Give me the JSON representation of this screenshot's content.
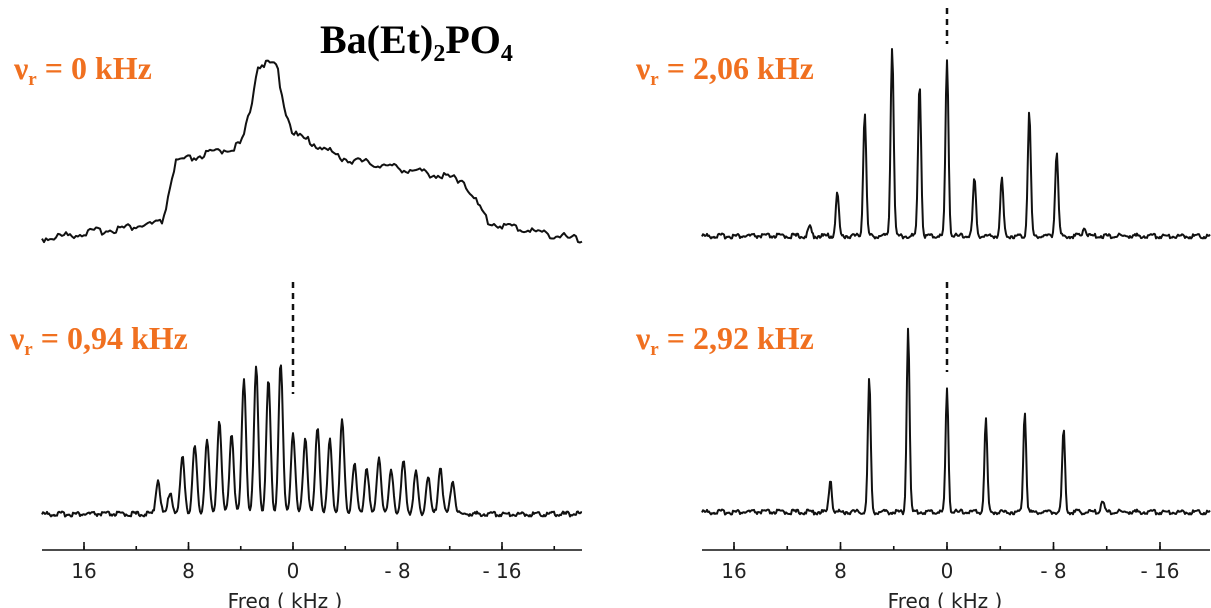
{
  "title": {
    "main": "Ba(Et)",
    "sub1": "2",
    "mid": "PO",
    "sub2": "4"
  },
  "colors": {
    "label": "#f07020",
    "trace": "#111111"
  },
  "chart_data": [
    {
      "type": "line",
      "panel": "top-left",
      "label": {
        "sym": "ν",
        "sub": "r",
        "text": " = 0 kHz"
      },
      "kind": "static",
      "x_range_khz": [
        20,
        -22
      ],
      "description_points": {
        "x": [
          20,
          10,
          9,
          4,
          2,
          0,
          -4,
          -8,
          -13,
          -15,
          -22
        ],
        "y": [
          0.0,
          0.1,
          0.45,
          0.55,
          1.0,
          0.62,
          0.47,
          0.42,
          0.35,
          0.1,
          0.0
        ]
      }
    },
    {
      "type": "line",
      "panel": "top-right",
      "label": {
        "sym": "ν",
        "sub": "r",
        "text": " = 2,06 kHz"
      },
      "kind": "spinning",
      "spin_rate_khz": 2.06,
      "x_range_khz": [
        20,
        -20
      ],
      "sidebands": {
        "x": [
          10.3,
          8.24,
          6.18,
          4.12,
          2.06,
          0,
          -2.06,
          -4.12,
          -6.18,
          -8.24,
          -10.3
        ],
        "y": [
          0.05,
          0.23,
          0.65,
          1.0,
          0.81,
          0.92,
          0.3,
          0.3,
          0.65,
          0.45,
          0.05
        ]
      },
      "xticks": [
        "16",
        "8",
        "0",
        "- 8",
        "- 16"
      ],
      "xlabel": "Freq ( kHz )",
      "dashed_marker_x": 0
    },
    {
      "type": "line",
      "panel": "bottom-left",
      "label": {
        "sym": "ν",
        "sub": "r",
        "text": " = 0,94 kHz"
      },
      "kind": "spinning",
      "spin_rate_khz": 0.94,
      "x_range_khz": [
        20,
        -22
      ],
      "xticks": [
        "16",
        "8",
        "0",
        "- 8",
        "- 16"
      ],
      "xlabel": "Freq ( kHz )",
      "dashed_marker_x": 0
    },
    {
      "type": "line",
      "panel": "bottom-right",
      "label": {
        "sym": "ν",
        "sub": "r",
        "text": " = 2,92 kHz"
      },
      "kind": "spinning",
      "spin_rate_khz": 2.92,
      "x_range_khz": [
        20,
        -20
      ],
      "sidebands": {
        "x": [
          8.76,
          5.84,
          2.92,
          0,
          -2.92,
          -5.84,
          -8.76,
          -11.68
        ],
        "y": [
          0.18,
          0.72,
          1.0,
          0.66,
          0.5,
          0.55,
          0.45,
          0.07
        ]
      },
      "xticks": [
        "16",
        "8",
        "0",
        "- 8",
        "- 16"
      ],
      "xlabel": "Freq ( kHz )",
      "dashed_marker_x": 0
    }
  ]
}
